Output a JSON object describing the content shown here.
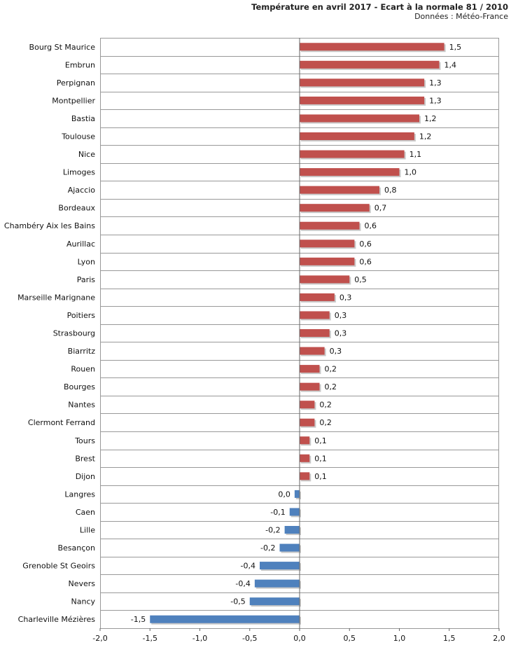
{
  "header": {
    "title": "Température en avril 2017 - Ecart à la normale 81 / 2010",
    "source": "Données : Météo-France"
  },
  "colors": {
    "positive": "#c0504d",
    "negative": "#4f81bd",
    "grid": "#999999",
    "axis": "#666666"
  },
  "chart_data": {
    "type": "bar",
    "orientation": "horizontal",
    "title": "Température en avril 2017 - Ecart à la normale 81 / 2010",
    "subtitle": "Données : Météo-France",
    "categories": [
      "Bourg St Maurice",
      "Embrun",
      "Perpignan",
      "Montpellier",
      "Bastia",
      "Toulouse",
      "Nice",
      "Limoges",
      "Ajaccio",
      "Bordeaux",
      "Chambéry Aix les Bains",
      "Aurillac",
      "Lyon",
      "Paris",
      "Marseille Marignane",
      "Poitiers",
      "Strasbourg",
      "Biarritz",
      "Rouen",
      "Bourges",
      "Nantes",
      "Clermont Ferrand",
      "Tours",
      "Brest",
      "Dijon",
      "Langres",
      "Caen",
      "Lille",
      "Besançon",
      "Grenoble St Geoirs",
      "Nevers",
      "Nancy",
      "Charleville Mézières"
    ],
    "values": [
      1.45,
      1.4,
      1.25,
      1.25,
      1.2,
      1.15,
      1.05,
      1.0,
      0.8,
      0.7,
      0.6,
      0.55,
      0.55,
      0.5,
      0.35,
      0.3,
      0.3,
      0.25,
      0.2,
      0.2,
      0.15,
      0.15,
      0.1,
      0.1,
      0.1,
      -0.05,
      -0.1,
      -0.15,
      -0.2,
      -0.4,
      -0.45,
      -0.5,
      -1.5
    ],
    "value_labels": [
      "1,5",
      "1,4",
      "1,3",
      "1,3",
      "1,2",
      "1,2",
      "1,1",
      "1,0",
      "0,8",
      "0,7",
      "0,6",
      "0,6",
      "0,6",
      "0,5",
      "0,3",
      "0,3",
      "0,3",
      "0,3",
      "0,2",
      "0,2",
      "0,2",
      "0,2",
      "0,1",
      "0,1",
      "0,1",
      "0,0",
      "-0,1",
      "-0,2",
      "-0,2",
      "-0,4",
      "-0,4",
      "-0,5",
      "-1,5"
    ],
    "xlim": [
      -2.0,
      2.0
    ],
    "xticks": [
      -2.0,
      -1.5,
      -1.0,
      -0.5,
      0.0,
      0.5,
      1.0,
      1.5,
      2.0
    ],
    "xtick_labels": [
      "-2,0",
      "-1,5",
      "-1,0",
      "-0,5",
      "0,0",
      "0,5",
      "1,0",
      "1,5",
      "2,0"
    ],
    "xlabel": "",
    "ylabel": "",
    "grid": true,
    "legend": "none"
  }
}
